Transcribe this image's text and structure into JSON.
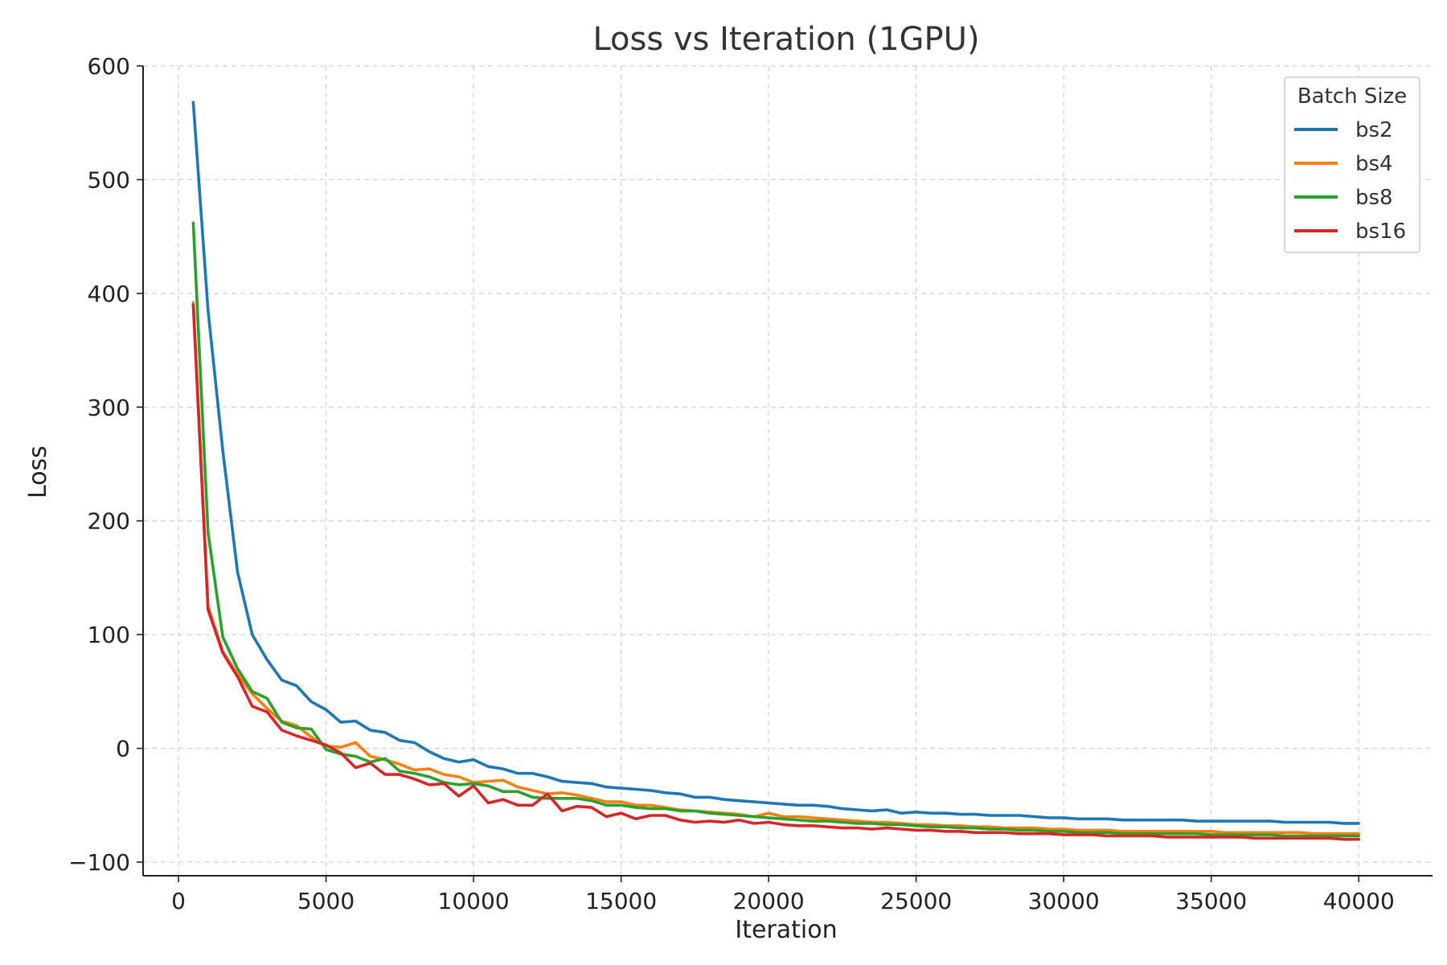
{
  "chart_data": {
    "type": "line",
    "title": "Loss vs Iteration (1GPU)",
    "xlabel": "Iteration",
    "ylabel": "Loss",
    "xlim": [
      -1200,
      42500
    ],
    "ylim": [
      -112,
      600
    ],
    "xticks": [
      0,
      5000,
      10000,
      15000,
      20000,
      25000,
      30000,
      35000,
      40000
    ],
    "yticks": [
      -100,
      0,
      100,
      200,
      300,
      400,
      500,
      600
    ],
    "xtick_labels": [
      "0",
      "5000",
      "10000",
      "15000",
      "20000",
      "25000",
      "30000",
      "35000",
      "40000"
    ],
    "ytick_labels": [
      "−100",
      "0",
      "100",
      "200",
      "300",
      "400",
      "500",
      "600"
    ],
    "grid": true,
    "legend": {
      "title": "Batch Size",
      "placement": "top-right"
    },
    "series": [
      {
        "name": "bs2",
        "color": "#1f77b4",
        "x": [
          500,
          1000,
          1500,
          2000,
          2500,
          3000,
          3500,
          4000,
          4500,
          5000,
          5500,
          6000,
          6500,
          7000,
          7500,
          8000,
          8500,
          9000,
          9500,
          10000,
          10500,
          11000,
          11500,
          12000,
          12500,
          13000,
          13500,
          14000,
          14500,
          15000,
          15500,
          16000,
          16500,
          17000,
          17500,
          18000,
          18500,
          19000,
          19500,
          20000,
          20500,
          21000,
          21500,
          22000,
          22500,
          23000,
          23500,
          24000,
          24500,
          25000,
          25500,
          26000,
          26500,
          27000,
          27500,
          28000,
          28500,
          29000,
          29500,
          30000,
          30500,
          31000,
          31500,
          32000,
          32500,
          33000,
          33500,
          34000,
          34500,
          35000,
          35500,
          36000,
          36500,
          37000,
          37500,
          38000,
          38500,
          39000,
          39500,
          40000
        ],
        "y": [
          568,
          385,
          262,
          155,
          100,
          78,
          60,
          55,
          41,
          34,
          23,
          24,
          16,
          14,
          7,
          5,
          -3,
          -9,
          -12,
          -10,
          -16,
          -18,
          -22,
          -22,
          -25,
          -29,
          -30,
          -31,
          -34,
          -35,
          -36,
          -37,
          -39,
          -40,
          -43,
          -43,
          -45,
          -46,
          -47,
          -48,
          -49,
          -50,
          -50,
          -51,
          -53,
          -54,
          -55,
          -54,
          -57,
          -56,
          -57,
          -57,
          -58,
          -58,
          -59,
          -59,
          -59,
          -60,
          -61,
          -61,
          -62,
          -62,
          -62,
          -63,
          -63,
          -63,
          -63,
          -63,
          -64,
          -64,
          -64,
          -64,
          -64,
          -64,
          -65,
          -65,
          -65,
          -65,
          -66,
          -66
        ]
      },
      {
        "name": "bs4",
        "color": "#ff7f0e",
        "x": [
          500,
          1000,
          1500,
          2000,
          2500,
          3000,
          3500,
          4000,
          4500,
          5000,
          5500,
          6000,
          6500,
          7000,
          7500,
          8000,
          8500,
          9000,
          9500,
          10000,
          10500,
          11000,
          11500,
          12000,
          12500,
          13000,
          13500,
          14000,
          14500,
          15000,
          15500,
          16000,
          16500,
          17000,
          17500,
          18000,
          18500,
          19000,
          19500,
          20000,
          20500,
          21000,
          21500,
          22000,
          22500,
          23000,
          23500,
          24000,
          24500,
          25000,
          25500,
          26000,
          26500,
          27000,
          27500,
          28000,
          28500,
          29000,
          29500,
          30000,
          30500,
          31000,
          31500,
          32000,
          32500,
          33000,
          33500,
          34000,
          34500,
          35000,
          35500,
          36000,
          36500,
          37000,
          37500,
          38000,
          38500,
          39000,
          39500,
          40000
        ],
        "y": [
          392,
          125,
          85,
          65,
          48,
          35,
          24,
          20,
          10,
          2,
          1,
          5,
          -7,
          -10,
          -14,
          -19,
          -18,
          -23,
          -25,
          -30,
          -29,
          -28,
          -34,
          -37,
          -40,
          -39,
          -41,
          -44,
          -47,
          -47,
          -50,
          -50,
          -52,
          -54,
          -55,
          -56,
          -57,
          -58,
          -60,
          -57,
          -60,
          -60,
          -61,
          -62,
          -63,
          -64,
          -65,
          -65,
          -66,
          -67,
          -67,
          -68,
          -68,
          -69,
          -69,
          -70,
          -70,
          -70,
          -71,
          -71,
          -72,
          -72,
          -72,
          -73,
          -73,
          -73,
          -73,
          -73,
          -73,
          -73,
          -74,
          -74,
          -74,
          -74,
          -74,
          -74,
          -75,
          -75,
          -75,
          -75
        ]
      },
      {
        "name": "bs8",
        "color": "#2ca02c",
        "x": [
          500,
          1000,
          1500,
          2000,
          2500,
          3000,
          3500,
          4000,
          4500,
          5000,
          5500,
          6000,
          6500,
          7000,
          7500,
          8000,
          8500,
          9000,
          9500,
          10000,
          10500,
          11000,
          11500,
          12000,
          12500,
          13000,
          13500,
          14000,
          14500,
          15000,
          15500,
          16000,
          16500,
          17000,
          17500,
          18000,
          18500,
          19000,
          19500,
          20000,
          20500,
          21000,
          21500,
          22000,
          22500,
          23000,
          23500,
          24000,
          24500,
          25000,
          25500,
          26000,
          26500,
          27000,
          27500,
          28000,
          28500,
          29000,
          29500,
          30000,
          30500,
          31000,
          31500,
          32000,
          32500,
          33000,
          33500,
          34000,
          34500,
          35000,
          35500,
          36000,
          36500,
          37000,
          37500,
          38000,
          38500,
          39000,
          39500,
          40000
        ],
        "y": [
          462,
          190,
          98,
          70,
          50,
          44,
          23,
          18,
          17,
          -1,
          -5,
          -7,
          -12,
          -9,
          -20,
          -22,
          -25,
          -30,
          -32,
          -31,
          -33,
          -38,
          -38,
          -43,
          -44,
          -44,
          -44,
          -46,
          -50,
          -50,
          -52,
          -53,
          -53,
          -55,
          -55,
          -57,
          -58,
          -59,
          -60,
          -61,
          -62,
          -63,
          -64,
          -64,
          -65,
          -66,
          -66,
          -67,
          -67,
          -68,
          -69,
          -69,
          -70,
          -70,
          -71,
          -71,
          -72,
          -72,
          -73,
          -73,
          -74,
          -74,
          -74,
          -75,
          -75,
          -75,
          -75,
          -75,
          -75,
          -76,
          -76,
          -76,
          -76,
          -76,
          -77,
          -77,
          -77,
          -77,
          -77,
          -77
        ]
      },
      {
        "name": "bs16",
        "color": "#d62728",
        "x": [
          500,
          1000,
          1500,
          2000,
          2500,
          3000,
          3500,
          4000,
          4500,
          5000,
          5500,
          6000,
          6500,
          7000,
          7500,
          8000,
          8500,
          9000,
          9500,
          10000,
          10500,
          11000,
          11500,
          12000,
          12500,
          13000,
          13500,
          14000,
          14500,
          15000,
          15500,
          16000,
          16500,
          17000,
          17500,
          18000,
          18500,
          19000,
          19500,
          20000,
          20500,
          21000,
          21500,
          22000,
          22500,
          23000,
          23500,
          24000,
          24500,
          25000,
          25500,
          26000,
          26500,
          27000,
          27500,
          28000,
          28500,
          29000,
          29500,
          30000,
          30500,
          31000,
          31500,
          32000,
          32500,
          33000,
          33500,
          34000,
          34500,
          35000,
          35500,
          36000,
          36500,
          37000,
          37500,
          38000,
          38500,
          39000,
          39500,
          40000
        ],
        "y": [
          390,
          122,
          84,
          63,
          37,
          32,
          16,
          11,
          7,
          3,
          -4,
          -17,
          -13,
          -23,
          -23,
          -27,
          -32,
          -31,
          -42,
          -33,
          -48,
          -45,
          -50,
          -50,
          -40,
          -55,
          -51,
          -52,
          -60,
          -57,
          -62,
          -59,
          -59,
          -63,
          -65,
          -64,
          -65,
          -63,
          -66,
          -65,
          -67,
          -68,
          -68,
          -69,
          -70,
          -70,
          -71,
          -70,
          -71,
          -72,
          -72,
          -73,
          -73,
          -74,
          -74,
          -74,
          -75,
          -75,
          -75,
          -76,
          -76,
          -76,
          -77,
          -77,
          -77,
          -77,
          -78,
          -78,
          -78,
          -78,
          -78,
          -78,
          -79,
          -79,
          -79,
          -79,
          -79,
          -79,
          -80,
          -80
        ]
      }
    ]
  }
}
